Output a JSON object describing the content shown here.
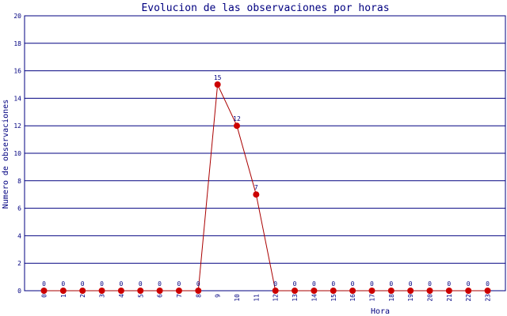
{
  "chart_data": {
    "type": "line",
    "title": "Evolucion de las observaciones por horas",
    "xlabel": "Hora",
    "ylabel": "Numero de observaciones",
    "ylim": [
      0,
      20
    ],
    "yticks": [
      0,
      2,
      4,
      6,
      8,
      10,
      12,
      14,
      16,
      18,
      20
    ],
    "grid": true,
    "categories": [
      "0",
      "1",
      "2",
      "3",
      "4",
      "5",
      "6",
      "7",
      "8",
      "9",
      "10",
      "11",
      "12",
      "13",
      "14",
      "15",
      "16",
      "17",
      "18",
      "19",
      "20",
      "21",
      "22",
      "23"
    ],
    "series": [
      {
        "values": [
          0,
          0,
          0,
          0,
          0,
          0,
          0,
          0,
          0,
          15,
          12,
          7,
          0,
          0,
          0,
          0,
          0,
          0,
          0,
          0,
          0,
          0,
          0,
          0
        ],
        "line_color": "#aa0000",
        "marker_color": "#cc0000",
        "label_color": "#000080"
      }
    ],
    "colors": {
      "title": "#000080",
      "axis_text": "#000080",
      "grid": "#000080",
      "frame": "#000080"
    }
  }
}
